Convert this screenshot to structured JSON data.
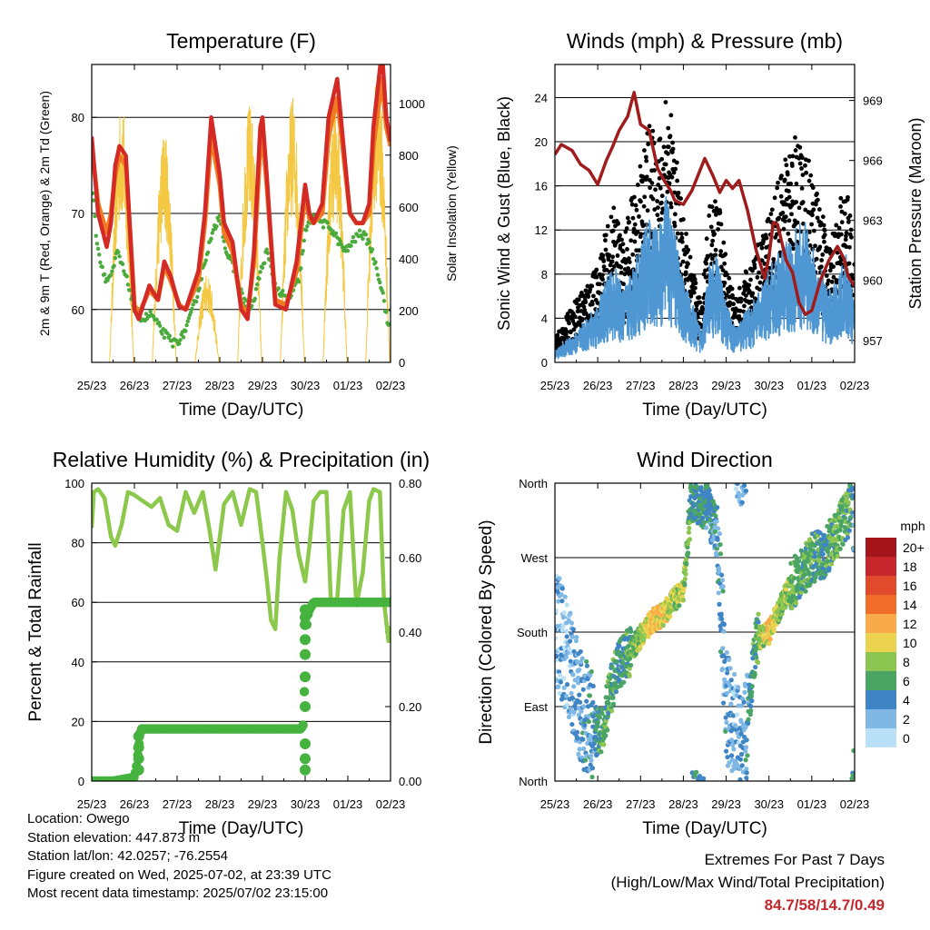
{
  "chart_data": [
    {
      "id": "temperature",
      "type": "line",
      "title": "Temperature (F)",
      "xlabel": "Time (Day/UTC)",
      "ylabel": "2m & 9m T (Red, Orange) & 2m Td (Green)",
      "ylabel_right": "Solar Insolation (Yellow)",
      "xticks": [
        "25/23",
        "26/23",
        "27/23",
        "28/23",
        "29/23",
        "30/23",
        "01/23",
        "02/23"
      ],
      "xlim": [
        0,
        7
      ],
      "ylim": [
        54.5,
        85.5
      ],
      "yticks": [
        60,
        70,
        80
      ],
      "ylim_right": [
        0,
        1150
      ],
      "yticks_right": [
        0,
        200,
        400,
        600,
        800,
        1000
      ],
      "grid_y": true,
      "series": [
        {
          "name": "2m T",
          "color": "#d42a26",
          "x": [
            0,
            0.15,
            0.35,
            0.45,
            0.55,
            0.65,
            0.8,
            0.9,
            1.0,
            1.1,
            1.35,
            1.55,
            1.7,
            1.85,
            2.05,
            2.2,
            2.5,
            2.65,
            2.8,
            3.0,
            3.1,
            3.3,
            3.5,
            3.65,
            3.8,
            3.95,
            4.0,
            4.1,
            4.3,
            4.55,
            4.8,
            5.0,
            5.1,
            5.2,
            5.4,
            5.55,
            5.75,
            5.9,
            6.05,
            6.2,
            6.35,
            6.5,
            6.6,
            6.8,
            6.9,
            7.0
          ],
          "y": [
            78,
            70,
            66.5,
            69,
            75,
            77,
            76,
            68,
            60,
            59,
            62.5,
            61,
            65,
            63.5,
            60.3,
            60,
            64,
            70,
            80,
            74,
            69,
            67,
            60,
            59,
            66,
            79,
            80,
            74,
            60.5,
            60,
            65,
            73,
            70,
            69,
            71,
            80,
            84,
            77,
            70,
            69,
            69,
            71,
            79,
            87,
            80,
            77.5
          ]
        },
        {
          "name": "9m T",
          "color": "#f07a22",
          "x": [
            0,
            0.15,
            0.35,
            0.45,
            0.55,
            0.65,
            0.8,
            0.9,
            1.0,
            1.1,
            1.35,
            1.55,
            1.7,
            1.85,
            2.05,
            2.2,
            2.5,
            2.65,
            2.8,
            3.0,
            3.1,
            3.3,
            3.5,
            3.65,
            3.8,
            3.95,
            4.0,
            4.1,
            4.3,
            4.55,
            4.8,
            5.0,
            5.1,
            5.2,
            5.4,
            5.55,
            5.75,
            5.9,
            6.05,
            6.2,
            6.35,
            6.5,
            6.6,
            6.8,
            6.9,
            7.0
          ],
          "y": [
            77,
            71,
            68,
            70,
            74,
            76,
            75,
            68,
            60.5,
            59.5,
            62,
            61,
            64.5,
            63,
            60.5,
            60,
            63,
            69,
            78,
            73,
            68,
            66,
            60.5,
            59.5,
            65,
            77,
            78,
            73,
            61,
            60.5,
            64,
            72,
            69.5,
            69,
            70,
            78,
            82,
            76,
            70,
            69,
            69,
            70,
            77,
            84,
            79,
            77
          ]
        },
        {
          "name": "2m Td",
          "color": "#4aaa3c",
          "x": [
            0,
            0.1,
            0.2,
            0.35,
            0.5,
            0.6,
            0.75,
            0.9,
            1.0,
            1.2,
            1.4,
            1.6,
            1.8,
            1.9,
            2.1,
            2.3,
            2.5,
            2.7,
            2.85,
            3.0,
            3.15,
            3.35,
            3.55,
            3.75,
            3.9,
            4.1,
            4.35,
            4.6,
            4.85,
            5.0,
            5.2,
            5.4,
            5.6,
            5.8,
            5.95,
            6.1,
            6.3,
            6.5,
            6.7,
            6.85,
            6.95,
            7.0
          ],
          "y": [
            74,
            68,
            65,
            63,
            64,
            66,
            64,
            62,
            60,
            59,
            59.5,
            58,
            57,
            56.5,
            57,
            59,
            62,
            66,
            68,
            70,
            66,
            64,
            61,
            60,
            63,
            66,
            62,
            61,
            63,
            68,
            70,
            69,
            68.5,
            67,
            66,
            67,
            68,
            67,
            64,
            61,
            58,
            58.5
          ]
        }
      ],
      "solar": {
        "name": "Solar Insolation",
        "color": "#f4c842",
        "max_right_units": 1130,
        "days": [
          {
            "noon": 0.7,
            "peak": 1000
          },
          {
            "noon": 1.7,
            "peak": 900
          },
          {
            "noon": 2.7,
            "peak": 340
          },
          {
            "noon": 3.7,
            "peak": 1000
          },
          {
            "noon": 4.7,
            "peak": 1030
          },
          {
            "noon": 5.7,
            "peak": 1000
          },
          {
            "noon": 6.7,
            "peak": 1130
          }
        ]
      }
    },
    {
      "id": "winds",
      "type": "scatter",
      "title": "Winds (mph) & Pressure (mb)",
      "xlabel": "Time (Day/UTC)",
      "ylabel": "Sonic Wind & Gust (Blue, Black)",
      "ylabel_right": "Station Pressure (Maroon)",
      "xticks": [
        "25/23",
        "26/23",
        "27/23",
        "28/23",
        "29/23",
        "30/23",
        "01/23",
        "02/23"
      ],
      "xlim": [
        0,
        7
      ],
      "ylim": [
        0,
        27
      ],
      "yticks": [
        0,
        4,
        8,
        12,
        16,
        20,
        24
      ],
      "ylim_right": [
        955.9,
        970.8
      ],
      "yticks_right": [
        957,
        960,
        963,
        966,
        969
      ],
      "grid_y": true,
      "wind_envelope": {
        "x": [
          0,
          0.3,
          0.6,
          0.8,
          1.0,
          1.2,
          1.4,
          1.6,
          1.8,
          2.0,
          2.2,
          2.4,
          2.6,
          2.8,
          3.0,
          3.2,
          3.4,
          3.6,
          3.8,
          4.0,
          4.2,
          4.4,
          4.6,
          4.8,
          5.0,
          5.2,
          5.4,
          5.6,
          5.8,
          6.0,
          6.2,
          6.4,
          6.6,
          6.8,
          7.0
        ],
        "y": [
          1,
          2,
          3,
          4,
          5,
          7,
          8,
          6,
          8,
          10,
          12,
          11,
          14,
          11,
          7,
          5,
          3,
          8,
          9,
          5,
          3,
          4,
          5,
          6,
          8,
          9,
          10,
          11,
          12,
          10,
          8,
          6,
          7,
          9,
          5
        ]
      },
      "gust_envelope": {
        "x": [
          0,
          0.3,
          0.6,
          0.8,
          1.0,
          1.2,
          1.4,
          1.6,
          1.8,
          2.0,
          2.2,
          2.4,
          2.6,
          2.8,
          3.0,
          3.2,
          3.4,
          3.6,
          3.8,
          4.0,
          4.2,
          4.4,
          4.6,
          4.8,
          5.0,
          5.2,
          5.4,
          5.6,
          5.8,
          6.0,
          6.2,
          6.4,
          6.6,
          6.8,
          7.0
        ],
        "y": [
          2,
          4,
          6,
          7,
          8,
          11,
          13,
          10,
          14,
          17,
          20,
          18,
          24,
          18,
          12,
          8,
          5,
          13,
          14,
          9,
          5,
          7,
          9,
          10,
          13,
          15,
          17,
          19,
          18,
          16,
          13,
          10,
          12,
          16,
          8
        ]
      },
      "pressure": {
        "name": "Station Pressure",
        "color": "#a01b1b",
        "x": [
          0,
          0.15,
          0.4,
          0.6,
          0.8,
          1.0,
          1.2,
          1.35,
          1.5,
          1.7,
          1.85,
          2.0,
          2.2,
          2.4,
          2.55,
          2.7,
          2.8,
          3.0,
          3.2,
          3.5,
          3.7,
          3.85,
          4.0,
          4.15,
          4.3,
          4.5,
          4.7,
          4.9,
          5.0,
          5.1,
          5.2,
          5.4,
          5.55,
          5.7,
          5.85,
          6.0,
          6.2,
          6.4,
          6.6,
          6.75,
          6.85,
          7.0
        ],
        "y": [
          966.3,
          966.8,
          966.5,
          965.8,
          965.5,
          964.8,
          966.0,
          966.7,
          967.5,
          968.2,
          969.4,
          967.8,
          967.5,
          965.6,
          965.0,
          964.5,
          964.0,
          963.8,
          964.5,
          966.1,
          965.2,
          964.4,
          965.0,
          964.6,
          965.0,
          963.5,
          961.5,
          960.1,
          961.2,
          962.9,
          962.8,
          961.0,
          960.4,
          958.9,
          958.3,
          958.5,
          960.0,
          961.0,
          961.7,
          961.1,
          960.2,
          959.7
        ]
      }
    },
    {
      "id": "humidity",
      "type": "line",
      "title": "Relative Humidity (%) & Precipitation (in)",
      "xlabel": "Time (Day/UTC)",
      "ylabel": "Percent & Total Rainfall",
      "xticks": [
        "25/23",
        "26/23",
        "27/23",
        "28/23",
        "29/23",
        "30/23",
        "01/23",
        "02/23"
      ],
      "xlim": [
        0,
        7
      ],
      "ylim": [
        0,
        100
      ],
      "yticks": [
        0,
        20,
        40,
        60,
        80,
        100
      ],
      "ylim_right": [
        0,
        0.8
      ],
      "yticks_right": [
        "0.00",
        "0.20",
        "0.40",
        "0.60",
        "0.80"
      ],
      "grid_y": true,
      "series": [
        {
          "name": "RH",
          "color": "#8cc84b",
          "x": [
            0,
            0.05,
            0.15,
            0.3,
            0.45,
            0.55,
            0.7,
            0.85,
            1.0,
            1.2,
            1.4,
            1.6,
            1.8,
            2.0,
            2.2,
            2.4,
            2.6,
            2.75,
            2.9,
            3.1,
            3.3,
            3.5,
            3.7,
            3.85,
            4.0,
            4.1,
            4.2,
            4.3,
            4.4,
            4.55,
            4.7,
            4.85,
            5.0,
            5.1,
            5.2,
            5.35,
            5.5,
            5.6,
            5.75,
            5.9,
            6.05,
            6.2,
            6.35,
            6.5,
            6.6,
            6.75,
            6.85,
            6.95,
            7.0
          ],
          "y": [
            85,
            97,
            98,
            95,
            82,
            79,
            86,
            97,
            96,
            94,
            92,
            95,
            86,
            84,
            97,
            90,
            97,
            85,
            71,
            93,
            97,
            86,
            98,
            97,
            80,
            68,
            54,
            51,
            75,
            97,
            91,
            76,
            67,
            79,
            94,
            97,
            97,
            61,
            61,
            91,
            97,
            59,
            70,
            94,
            98,
            97,
            60,
            47,
            52
          ]
        },
        {
          "name": "Total Rainfall",
          "color": "#46b33e",
          "x": [
            0,
            0.5,
            1.0,
            1.05,
            1.1,
            1.15,
            1.2,
            2.0,
            3.0,
            4.0,
            4.9,
            4.95,
            5.0,
            5.02,
            5.05,
            5.1,
            5.2,
            5.5,
            6.0,
            7.0
          ],
          "y": [
            0.0,
            0.0,
            0.01,
            0.04,
            0.09,
            0.14,
            0.14,
            0.14,
            0.14,
            0.14,
            0.14,
            0.15,
            0.3,
            0.38,
            0.44,
            0.46,
            0.48,
            0.48,
            0.48,
            0.48
          ]
        }
      ]
    },
    {
      "id": "direction",
      "type": "scatter",
      "title": "Wind Direction",
      "xlabel": "Time (Day/UTC)",
      "ylabel": "Direction (Colored By Speed)",
      "xticks": [
        "25/23",
        "26/23",
        "27/23",
        "28/23",
        "29/23",
        "30/23",
        "01/23",
        "02/23"
      ],
      "xlim": [
        0,
        7
      ],
      "ylim": [
        0,
        360
      ],
      "yticks": [
        "North",
        "East",
        "South",
        "West",
        "North"
      ],
      "grid_y": true,
      "colorbar": {
        "title": "mph",
        "labels": [
          "20+",
          "18",
          "16",
          "14",
          "12",
          "10",
          "8",
          "6",
          "4",
          "2",
          "0"
        ],
        "colors": [
          "#a3151b",
          "#c7262b",
          "#e24a2c",
          "#f06d2a",
          "#f9ab4a",
          "#ecd34f",
          "#8cc550",
          "#4aa564",
          "#3f84c4",
          "#7fb8e4",
          "#b9e0f6"
        ]
      },
      "trend": {
        "x": [
          0,
          0.3,
          0.6,
          0.9,
          1.1,
          1.3,
          1.5,
          1.8,
          2.0,
          2.3,
          2.5,
          2.8,
          3.0,
          3.2,
          3.5,
          3.8,
          4.0,
          4.2,
          4.4,
          4.7,
          5.0,
          5.3,
          5.5,
          5.8,
          6.0,
          6.3,
          6.6,
          6.9,
          7.0
        ],
        "y": [
          190,
          150,
          90,
          60,
          60,
          110,
          140,
          160,
          175,
          195,
          200,
          220,
          230,
          345,
          335,
          300,
          90,
          60,
          30,
          170,
          180,
          215,
          235,
          255,
          270,
          275,
          300,
          330,
          350
        ],
        "speed": [
          2,
          2,
          3,
          4,
          6,
          6,
          5,
          7,
          8,
          11,
          10,
          8,
          9,
          5,
          5,
          4,
          3,
          2,
          3,
          6,
          11,
          8,
          7,
          6,
          6,
          5,
          7,
          6,
          3
        ]
      }
    }
  ],
  "info": {
    "location": "Location: Owego",
    "elevation": "Station elevation: 447.873 m",
    "latlon": "Station lat/lon: 42.0257; -76.2554",
    "created": "Figure created on Wed, 2025-07-02, at 23:39 UTC",
    "recent": "Most recent data timestamp: 2025/07/02 23:15:00"
  },
  "extremes": {
    "title": "Extremes For Past 7 Days",
    "subtitle": "(High/Low/Max Wind/Total Precipitation)",
    "values": "84.7/58/14.7/0.49"
  }
}
